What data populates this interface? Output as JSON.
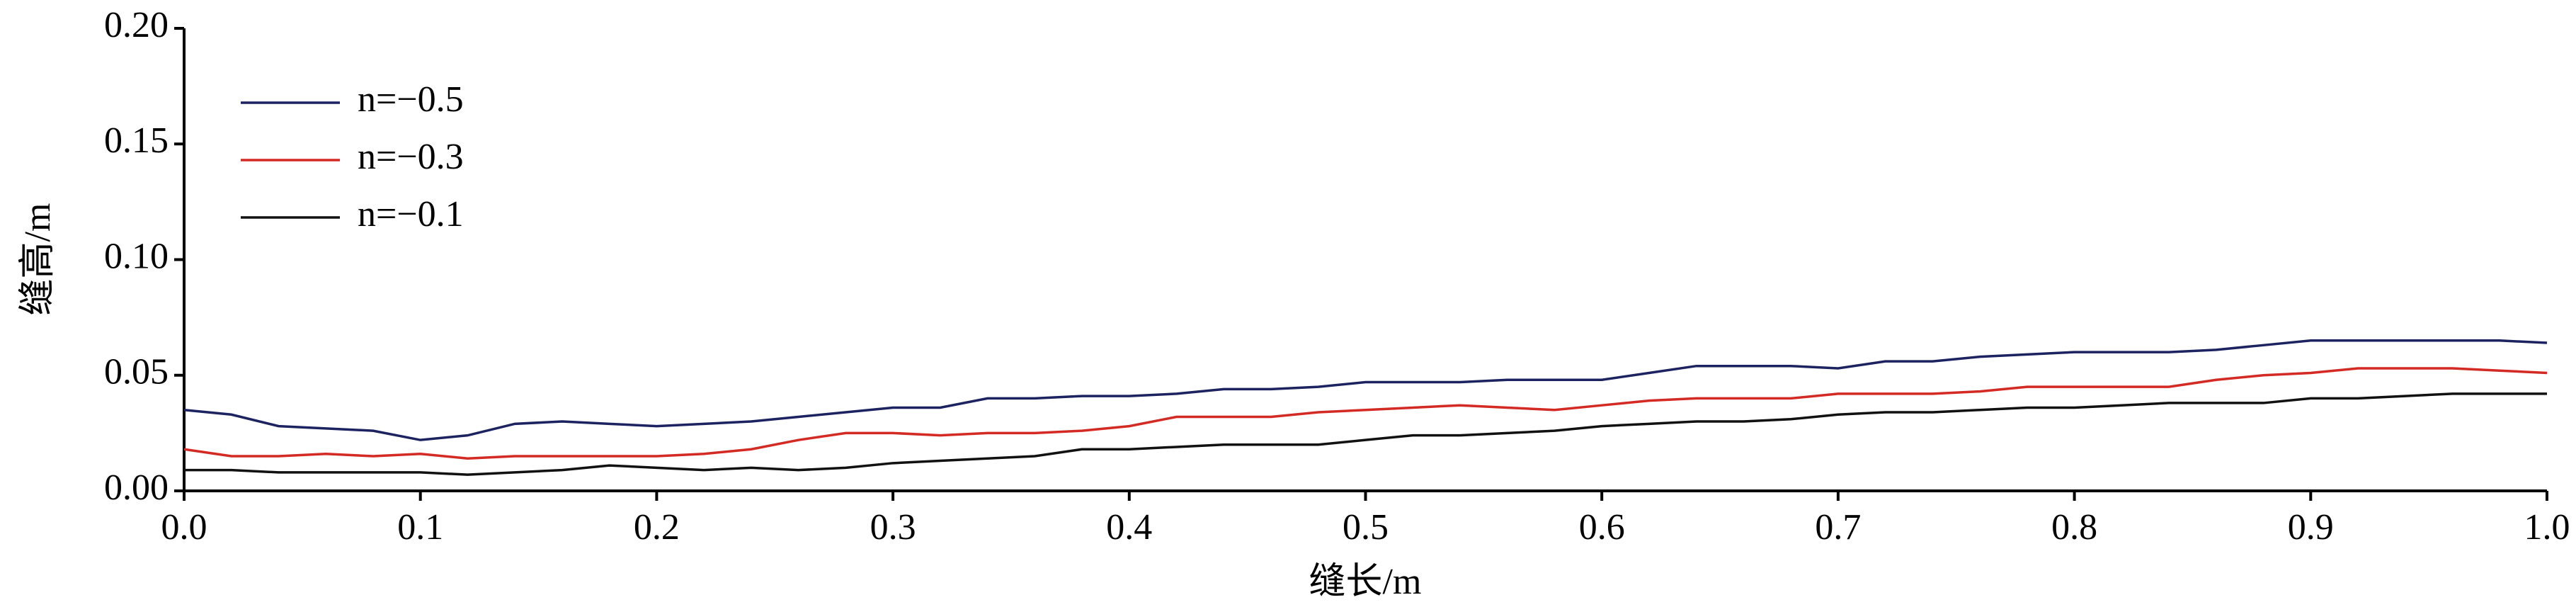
{
  "chart_data": {
    "type": "line",
    "x_label": "缝长/m",
    "y_label": "缝高/m",
    "x": [
      0,
      0.02,
      0.04,
      0.06,
      0.08,
      0.1,
      0.12,
      0.14,
      0.16,
      0.18,
      0.2,
      0.22,
      0.24,
      0.26,
      0.28,
      0.3,
      0.32,
      0.34,
      0.36,
      0.38,
      0.4,
      0.42,
      0.44,
      0.46,
      0.48,
      0.5,
      0.52,
      0.54,
      0.56,
      0.58,
      0.6,
      0.62,
      0.64,
      0.66,
      0.68,
      0.7,
      0.72,
      0.74,
      0.76,
      0.78,
      0.8,
      0.82,
      0.84,
      0.86,
      0.88,
      0.9,
      0.92,
      0.94,
      0.96,
      0.98,
      1
    ],
    "series": [
      {
        "name": "n=−0.5",
        "color": "#1c2360",
        "values": [
          0.035,
          0.033,
          0.028,
          0.027,
          0.026,
          0.022,
          0.024,
          0.029,
          0.03,
          0.029,
          0.028,
          0.029,
          0.03,
          0.032,
          0.034,
          0.036,
          0.036,
          0.04,
          0.04,
          0.041,
          0.041,
          0.042,
          0.044,
          0.044,
          0.045,
          0.047,
          0.047,
          0.047,
          0.048,
          0.048,
          0.048,
          0.051,
          0.054,
          0.054,
          0.054,
          0.053,
          0.056,
          0.056,
          0.058,
          0.059,
          0.06,
          0.06,
          0.06,
          0.061,
          0.063,
          0.065,
          0.065,
          0.065,
          0.065,
          0.065,
          0.064
        ]
      },
      {
        "name": "n=−0.3",
        "color": "#d42a24",
        "values": [
          0.018,
          0.015,
          0.015,
          0.016,
          0.015,
          0.016,
          0.014,
          0.015,
          0.015,
          0.015,
          0.015,
          0.016,
          0.018,
          0.022,
          0.025,
          0.025,
          0.024,
          0.025,
          0.025,
          0.026,
          0.028,
          0.032,
          0.032,
          0.032,
          0.034,
          0.035,
          0.036,
          0.037,
          0.036,
          0.035,
          0.037,
          0.039,
          0.04,
          0.04,
          0.04,
          0.042,
          0.042,
          0.042,
          0.043,
          0.045,
          0.045,
          0.045,
          0.045,
          0.048,
          0.05,
          0.051,
          0.053,
          0.053,
          0.053,
          0.052,
          0.051
        ]
      },
      {
        "name": "n=−0.1",
        "color": "#111111",
        "values": [
          0.009,
          0.009,
          0.008,
          0.008,
          0.008,
          0.008,
          0.007,
          0.008,
          0.009,
          0.011,
          0.01,
          0.009,
          0.01,
          0.009,
          0.01,
          0.012,
          0.013,
          0.014,
          0.015,
          0.018,
          0.018,
          0.019,
          0.02,
          0.02,
          0.02,
          0.022,
          0.024,
          0.024,
          0.025,
          0.026,
          0.028,
          0.029,
          0.03,
          0.03,
          0.031,
          0.033,
          0.034,
          0.034,
          0.035,
          0.036,
          0.036,
          0.037,
          0.038,
          0.038,
          0.038,
          0.04,
          0.04,
          0.041,
          0.042,
          0.042,
          0.042
        ]
      }
    ],
    "xlim": [
      0,
      1
    ],
    "xticks": [
      {
        "value": 0,
        "label": "0.0"
      },
      {
        "value": 0.1,
        "label": "0.1"
      },
      {
        "value": 0.2,
        "label": "0.2"
      },
      {
        "value": 0.3,
        "label": "0.3"
      },
      {
        "value": 0.4,
        "label": "0.4"
      },
      {
        "value": 0.5,
        "label": "0.5"
      },
      {
        "value": 0.6,
        "label": "0.6"
      },
      {
        "value": 0.7,
        "label": "0.7"
      },
      {
        "value": 0.8,
        "label": "0.8"
      },
      {
        "value": 0.9,
        "label": "0.9"
      },
      {
        "value": 1,
        "label": "1.0"
      }
    ],
    "ylim": [
      0,
      0.2
    ],
    "yticks": [
      {
        "value": 0,
        "label": "0.00"
      },
      {
        "value": 0.05,
        "label": "0.05"
      },
      {
        "value": 0.1,
        "label": "0.10"
      },
      {
        "value": 0.15,
        "label": "0.15"
      },
      {
        "value": 0.2,
        "label": "0.20"
      }
    ],
    "legend": "upper left",
    "grid": false
  }
}
